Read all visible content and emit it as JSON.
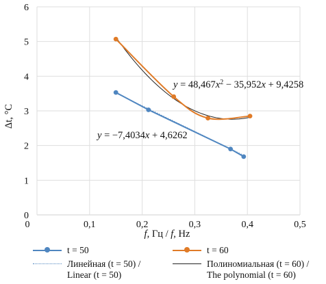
{
  "chart_data": {
    "type": "scatter",
    "xlabel_parts": [
      "f",
      ", Гц / ",
      "f",
      ", Hz"
    ],
    "ylabel": "Δt, °C",
    "xlim": [
      0,
      0.5
    ],
    "ylim": [
      0,
      6
    ],
    "xticks": [
      "0",
      "0,1",
      "0,2",
      "0,3",
      "0,4",
      "0,5"
    ],
    "yticks": [
      "0",
      "1",
      "2",
      "3",
      "4",
      "5",
      "6"
    ],
    "grid": true,
    "legend_position": "bottom",
    "series": [
      {
        "name": "t = 50",
        "color": "#4f86c0",
        "points": [
          [
            0.15,
            3.53
          ],
          [
            0.212,
            3.03
          ],
          [
            0.368,
            1.9
          ],
          [
            0.393,
            1.68
          ]
        ],
        "trendline": {
          "kind": "linear",
          "legend": "Линейная (t = 50) /\nLinear (t = 50)",
          "equation": "y = −7,4034x + 4,6262",
          "coefficients": [
            -7.4034,
            4.6262
          ]
        }
      },
      {
        "name": "t = 60",
        "color": "#e07b27",
        "points": [
          [
            0.15,
            5.07
          ],
          [
            0.26,
            3.41
          ],
          [
            0.325,
            2.79
          ],
          [
            0.405,
            2.85
          ]
        ],
        "trendline": {
          "kind": "polynomial",
          "legend": "Полиномиальная (t = 60) /\nThe polynomial (t = 60)",
          "equation": "y = 48,467x2 − 35,952x + 9,4258",
          "coefficients": [
            48.467,
            -35.952,
            9.4258
          ]
        }
      }
    ]
  },
  "legend": {
    "s1": "t = 50",
    "s2": "t = 60",
    "t1a": "Линейная (t = 50) /",
    "t1b": "Linear (t = 50)",
    "t2a": "Полиномиальная (t = 60) /",
    "t2b": "The polynomial (t = 60)"
  },
  "equations": {
    "linear": "y = −7,4034x + 4,6262",
    "poly": "y = 48,467x2 − 35,952x + 9,4258"
  }
}
